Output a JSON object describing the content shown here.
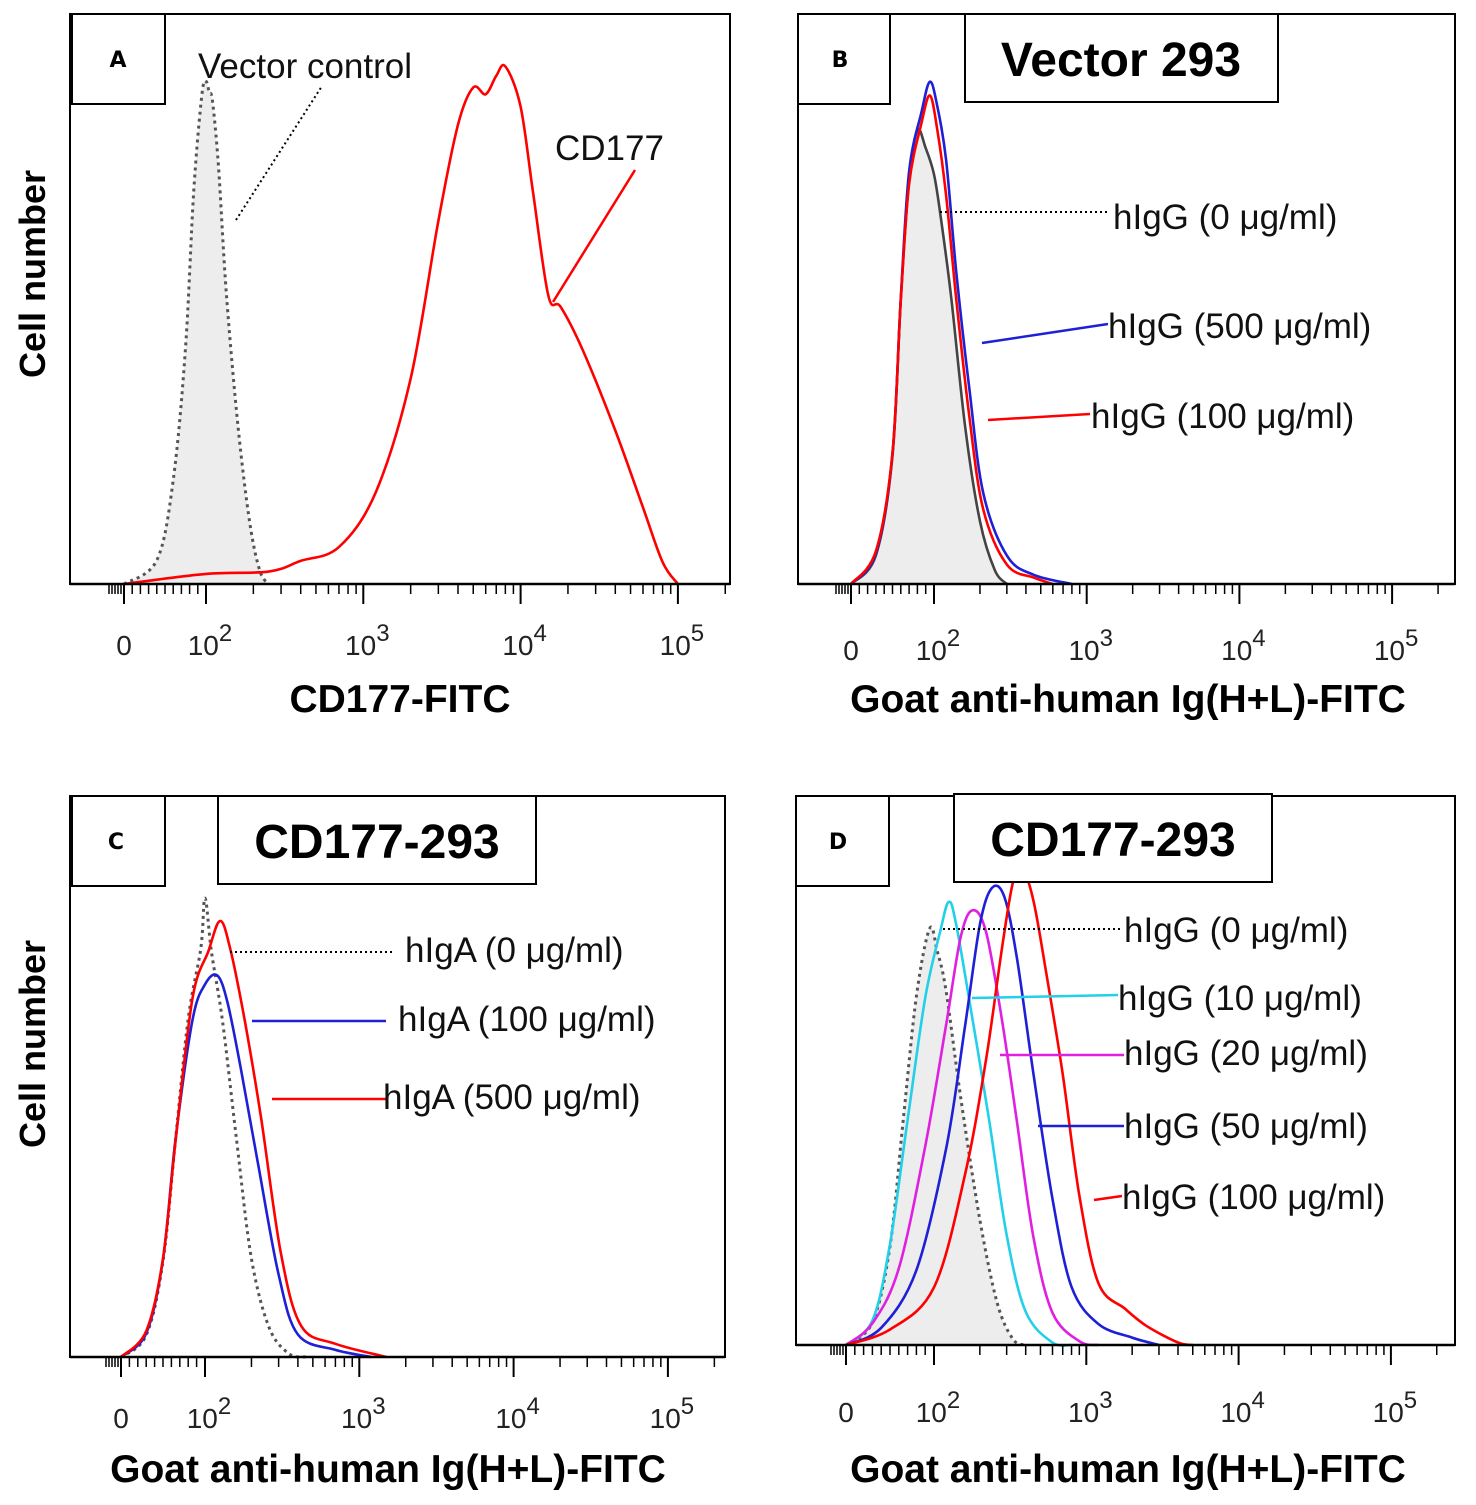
{
  "figure": {
    "y_label": "Cell number"
  },
  "chart_data": [
    {
      "type": "area",
      "panel": "A",
      "title": "",
      "xlabel": "CD177-FITC",
      "ylabel": "Cell number",
      "xscale": "logicle",
      "xlim": [
        -60,
        300000
      ],
      "tick_labels": [
        {
          "value": 0,
          "label": "0",
          "sup": ""
        },
        {
          "value": 100,
          "label": "10",
          "sup": "2"
        },
        {
          "value": 1000,
          "label": "10",
          "sup": "3"
        },
        {
          "value": 10000,
          "label": "10",
          "sup": "4"
        },
        {
          "value": 100000,
          "label": "10",
          "sup": "5"
        }
      ],
      "series": [
        {
          "name": "Vector control",
          "color": "#555555",
          "style": "dotted",
          "fill": "#ededed",
          "points": [
            [
              0,
              0
            ],
            [
              40,
              0.05
            ],
            [
              60,
              0.2
            ],
            [
              75,
              0.45
            ],
            [
              85,
              0.75
            ],
            [
              95,
              0.94
            ],
            [
              100,
              0.97
            ],
            [
              105,
              0.95
            ],
            [
              110,
              0.93
            ],
            [
              120,
              0.8
            ],
            [
              135,
              0.55
            ],
            [
              160,
              0.3
            ],
            [
              190,
              0.12
            ],
            [
              220,
              0.03
            ],
            [
              250,
              0
            ]
          ]
        },
        {
          "name": "CD177",
          "color": "#ff0000",
          "style": "solid",
          "fill": "none",
          "points": [
            [
              0,
              0
            ],
            [
              100,
              0.02
            ],
            [
              250,
              0.02
            ],
            [
              400,
              0.04
            ],
            [
              700,
              0.07
            ],
            [
              1200,
              0.18
            ],
            [
              2000,
              0.4
            ],
            [
              3000,
              0.7
            ],
            [
              4000,
              0.88
            ],
            [
              5000,
              0.95
            ],
            [
              6000,
              0.94
            ],
            [
              7000,
              0.98
            ],
            [
              8000,
              1.0
            ],
            [
              10000,
              0.92
            ],
            [
              12000,
              0.75
            ],
            [
              15000,
              0.55
            ],
            [
              18000,
              0.53
            ],
            [
              25000,
              0.45
            ],
            [
              40000,
              0.3
            ],
            [
              60000,
              0.15
            ],
            [
              80000,
              0.04
            ],
            [
              100000,
              0
            ]
          ]
        }
      ],
      "annotations": [
        {
          "text": "Vector control",
          "series": "Vector control"
        },
        {
          "text": "CD177",
          "series": "CD177"
        }
      ]
    },
    {
      "type": "area",
      "panel": "B",
      "title": "Vector 293",
      "xlabel": "Goat anti-human Ig(H+L)-FITC",
      "ylabel": "",
      "xscale": "logicle",
      "xlim": [
        -60,
        300000
      ],
      "tick_labels": [
        {
          "value": 0,
          "label": "0",
          "sup": ""
        },
        {
          "value": 100,
          "label": "10",
          "sup": "2"
        },
        {
          "value": 1000,
          "label": "10",
          "sup": "3"
        },
        {
          "value": 10000,
          "label": "10",
          "sup": "4"
        },
        {
          "value": 100000,
          "label": "10",
          "sup": "5"
        }
      ],
      "series": [
        {
          "name": "hIgG (0 μg/ml)",
          "color": "#444444",
          "style": "solid",
          "fill": "#ededed",
          "points": [
            [
              0,
              0
            ],
            [
              30,
              0.06
            ],
            [
              50,
              0.25
            ],
            [
              60,
              0.55
            ],
            [
              70,
              0.78
            ],
            [
              80,
              0.88
            ],
            [
              90,
              0.85
            ],
            [
              100,
              0.8
            ],
            [
              110,
              0.72
            ],
            [
              130,
              0.55
            ],
            [
              160,
              0.3
            ],
            [
              200,
              0.12
            ],
            [
              250,
              0.03
            ],
            [
              300,
              0
            ]
          ]
        },
        {
          "name": "hIgG (500 μg/ml)",
          "color": "#1f1fd6",
          "style": "solid",
          "fill": "none",
          "points": [
            [
              0,
              0
            ],
            [
              30,
              0.06
            ],
            [
              50,
              0.25
            ],
            [
              60,
              0.55
            ],
            [
              70,
              0.8
            ],
            [
              85,
              0.92
            ],
            [
              95,
              0.98
            ],
            [
              105,
              0.93
            ],
            [
              120,
              0.82
            ],
            [
              140,
              0.6
            ],
            [
              170,
              0.38
            ],
            [
              210,
              0.18
            ],
            [
              300,
              0.06
            ],
            [
              450,
              0.02
            ],
            [
              800,
              0
            ]
          ]
        },
        {
          "name": "hIgG (100 μg/ml)",
          "color": "#ff0000",
          "style": "solid",
          "fill": "none",
          "points": [
            [
              0,
              0
            ],
            [
              30,
              0.06
            ],
            [
              50,
              0.25
            ],
            [
              60,
              0.55
            ],
            [
              70,
              0.78
            ],
            [
              85,
              0.9
            ],
            [
              95,
              0.95
            ],
            [
              105,
              0.88
            ],
            [
              120,
              0.75
            ],
            [
              140,
              0.55
            ],
            [
              170,
              0.33
            ],
            [
              210,
              0.15
            ],
            [
              300,
              0.04
            ],
            [
              450,
              0.01
            ],
            [
              600,
              0
            ]
          ]
        }
      ],
      "annotations": [
        {
          "text": "hIgG (0 μg/ml)",
          "series": "hIgG (0 μg/ml)"
        },
        {
          "text": "hIgG (500 μg/ml)",
          "series": "hIgG (500 μg/ml)"
        },
        {
          "text": "hIgG (100 μg/ml)",
          "series": "hIgG (100 μg/ml)"
        }
      ]
    },
    {
      "type": "area",
      "panel": "C",
      "title": "CD177-293",
      "xlabel": "Goat anti-human Ig(H+L)-FITC",
      "ylabel": "Cell number",
      "xscale": "logicle",
      "xlim": [
        -60,
        300000
      ],
      "tick_labels": [
        {
          "value": 0,
          "label": "0",
          "sup": ""
        },
        {
          "value": 100,
          "label": "10",
          "sup": "2"
        },
        {
          "value": 1000,
          "label": "10",
          "sup": "3"
        },
        {
          "value": 10000,
          "label": "10",
          "sup": "4"
        },
        {
          "value": 100000,
          "label": "10",
          "sup": "5"
        }
      ],
      "series": [
        {
          "name": "hIgA (0 μg/ml)",
          "color": "#555555",
          "style": "dotted",
          "fill": "none",
          "points": [
            [
              0,
              0
            ],
            [
              30,
              0.05
            ],
            [
              50,
              0.2
            ],
            [
              65,
              0.45
            ],
            [
              80,
              0.7
            ],
            [
              95,
              0.85
            ],
            [
              100,
              0.96
            ],
            [
              110,
              0.85
            ],
            [
              130,
              0.7
            ],
            [
              160,
              0.45
            ],
            [
              200,
              0.2
            ],
            [
              260,
              0.06
            ],
            [
              350,
              0.01
            ],
            [
              450,
              0
            ]
          ]
        },
        {
          "name": "hIgA (100 μg/ml)",
          "color": "#1f1fd6",
          "style": "solid",
          "fill": "none",
          "points": [
            [
              0,
              0
            ],
            [
              30,
              0.05
            ],
            [
              50,
              0.2
            ],
            [
              65,
              0.45
            ],
            [
              85,
              0.7
            ],
            [
              100,
              0.78
            ],
            [
              120,
              0.8
            ],
            [
              140,
              0.74
            ],
            [
              170,
              0.6
            ],
            [
              220,
              0.4
            ],
            [
              300,
              0.17
            ],
            [
              400,
              0.05
            ],
            [
              700,
              0.02
            ],
            [
              1200,
              0
            ]
          ]
        },
        {
          "name": "hIgA (500 μg/ml)",
          "color": "#ff0000",
          "style": "solid",
          "fill": "none",
          "points": [
            [
              0,
              0
            ],
            [
              30,
              0.05
            ],
            [
              50,
              0.2
            ],
            [
              65,
              0.45
            ],
            [
              85,
              0.75
            ],
            [
              105,
              0.85
            ],
            [
              125,
              0.91
            ],
            [
              145,
              0.85
            ],
            [
              180,
              0.7
            ],
            [
              230,
              0.5
            ],
            [
              310,
              0.22
            ],
            [
              420,
              0.07
            ],
            [
              700,
              0.03
            ],
            [
              1500,
              0
            ]
          ]
        }
      ],
      "annotations": [
        {
          "text": "hIgA (0 μg/ml)",
          "series": "hIgA (0 μg/ml)"
        },
        {
          "text": "hIgA (100 μg/ml)",
          "series": "hIgA (100 μg/ml)"
        },
        {
          "text": "hIgA (500 μg/ml)",
          "series": "hIgA (500 μg/ml)"
        }
      ]
    },
    {
      "type": "area",
      "panel": "D",
      "title": "CD177-293",
      "xlabel": "Goat anti-human Ig(H+L)-FITC",
      "ylabel": "",
      "xscale": "logicle",
      "xlim": [
        -60,
        300000
      ],
      "tick_labels": [
        {
          "value": 0,
          "label": "0",
          "sup": ""
        },
        {
          "value": 100,
          "label": "10",
          "sup": "2"
        },
        {
          "value": 1000,
          "label": "10",
          "sup": "3"
        },
        {
          "value": 10000,
          "label": "10",
          "sup": "4"
        },
        {
          "value": 100000,
          "label": "10",
          "sup": "5"
        }
      ],
      "series": [
        {
          "name": "hIgG (0 μg/ml)",
          "color": "#555555",
          "style": "dotted",
          "fill": "#ededed",
          "points": [
            [
              0,
              0
            ],
            [
              30,
              0.05
            ],
            [
              50,
              0.2
            ],
            [
              65,
              0.45
            ],
            [
              80,
              0.7
            ],
            [
              95,
              0.84
            ],
            [
              105,
              0.8
            ],
            [
              120,
              0.72
            ],
            [
              150,
              0.5
            ],
            [
              200,
              0.25
            ],
            [
              260,
              0.08
            ],
            [
              330,
              0.01
            ],
            [
              400,
              0
            ]
          ]
        },
        {
          "name": "hIgG (10 μg/ml)",
          "color": "#22d0e8",
          "style": "solid",
          "fill": "none",
          "points": [
            [
              0,
              0
            ],
            [
              30,
              0.05
            ],
            [
              50,
              0.2
            ],
            [
              70,
              0.45
            ],
            [
              90,
              0.7
            ],
            [
              110,
              0.84
            ],
            [
              125,
              0.9
            ],
            [
              140,
              0.85
            ],
            [
              180,
              0.65
            ],
            [
              230,
              0.45
            ],
            [
              300,
              0.22
            ],
            [
              400,
              0.07
            ],
            [
              600,
              0.01
            ],
            [
              800,
              0
            ]
          ]
        },
        {
          "name": "hIgG (20 μg/ml)",
          "color": "#e020e0",
          "style": "solid",
          "fill": "none",
          "points": [
            [
              0,
              0
            ],
            [
              30,
              0.04
            ],
            [
              60,
              0.15
            ],
            [
              90,
              0.4
            ],
            [
              120,
              0.65
            ],
            [
              150,
              0.83
            ],
            [
              180,
              0.88
            ],
            [
              220,
              0.83
            ],
            [
              280,
              0.65
            ],
            [
              350,
              0.45
            ],
            [
              450,
              0.22
            ],
            [
              600,
              0.07
            ],
            [
              900,
              0.01
            ],
            [
              1200,
              0
            ]
          ]
        },
        {
          "name": "hIgG (50 μg/ml)",
          "color": "#1f1fd6",
          "style": "solid",
          "fill": "none",
          "points": [
            [
              0,
              0
            ],
            [
              40,
              0.03
            ],
            [
              80,
              0.15
            ],
            [
              120,
              0.4
            ],
            [
              160,
              0.65
            ],
            [
              200,
              0.85
            ],
            [
              240,
              0.92
            ],
            [
              290,
              0.9
            ],
            [
              350,
              0.78
            ],
            [
              450,
              0.55
            ],
            [
              600,
              0.3
            ],
            [
              800,
              0.12
            ],
            [
              1200,
              0.04
            ],
            [
              2000,
              0.01
            ],
            [
              3000,
              0
            ]
          ]
        },
        {
          "name": "hIgG (100 μg/ml)",
          "color": "#ff0000",
          "style": "solid",
          "fill": "none",
          "points": [
            [
              0,
              0
            ],
            [
              50,
              0.03
            ],
            [
              100,
              0.12
            ],
            [
              160,
              0.35
            ],
            [
              220,
              0.58
            ],
            [
              280,
              0.8
            ],
            [
              330,
              0.93
            ],
            [
              380,
              0.96
            ],
            [
              450,
              0.9
            ],
            [
              550,
              0.75
            ],
            [
              700,
              0.55
            ],
            [
              900,
              0.3
            ],
            [
              1200,
              0.12
            ],
            [
              1800,
              0.07
            ],
            [
              2500,
              0.04
            ],
            [
              4000,
              0.01
            ],
            [
              5000,
              0
            ]
          ]
        }
      ],
      "annotations": [
        {
          "text": "hIgG (0 μg/ml)",
          "series": "hIgG (0 μg/ml)"
        },
        {
          "text": "hIgG (10 μg/ml)",
          "series": "hIgG (10 μg/ml)"
        },
        {
          "text": "hIgG (20 μg/ml)",
          "series": "hIgG (20 μg/ml)"
        },
        {
          "text": "hIgG (50 μg/ml)",
          "series": "hIgG (50 μg/ml)"
        },
        {
          "text": "hIgG (100 μg/ml)",
          "series": "hIgG (100 μg/ml)"
        }
      ]
    }
  ]
}
